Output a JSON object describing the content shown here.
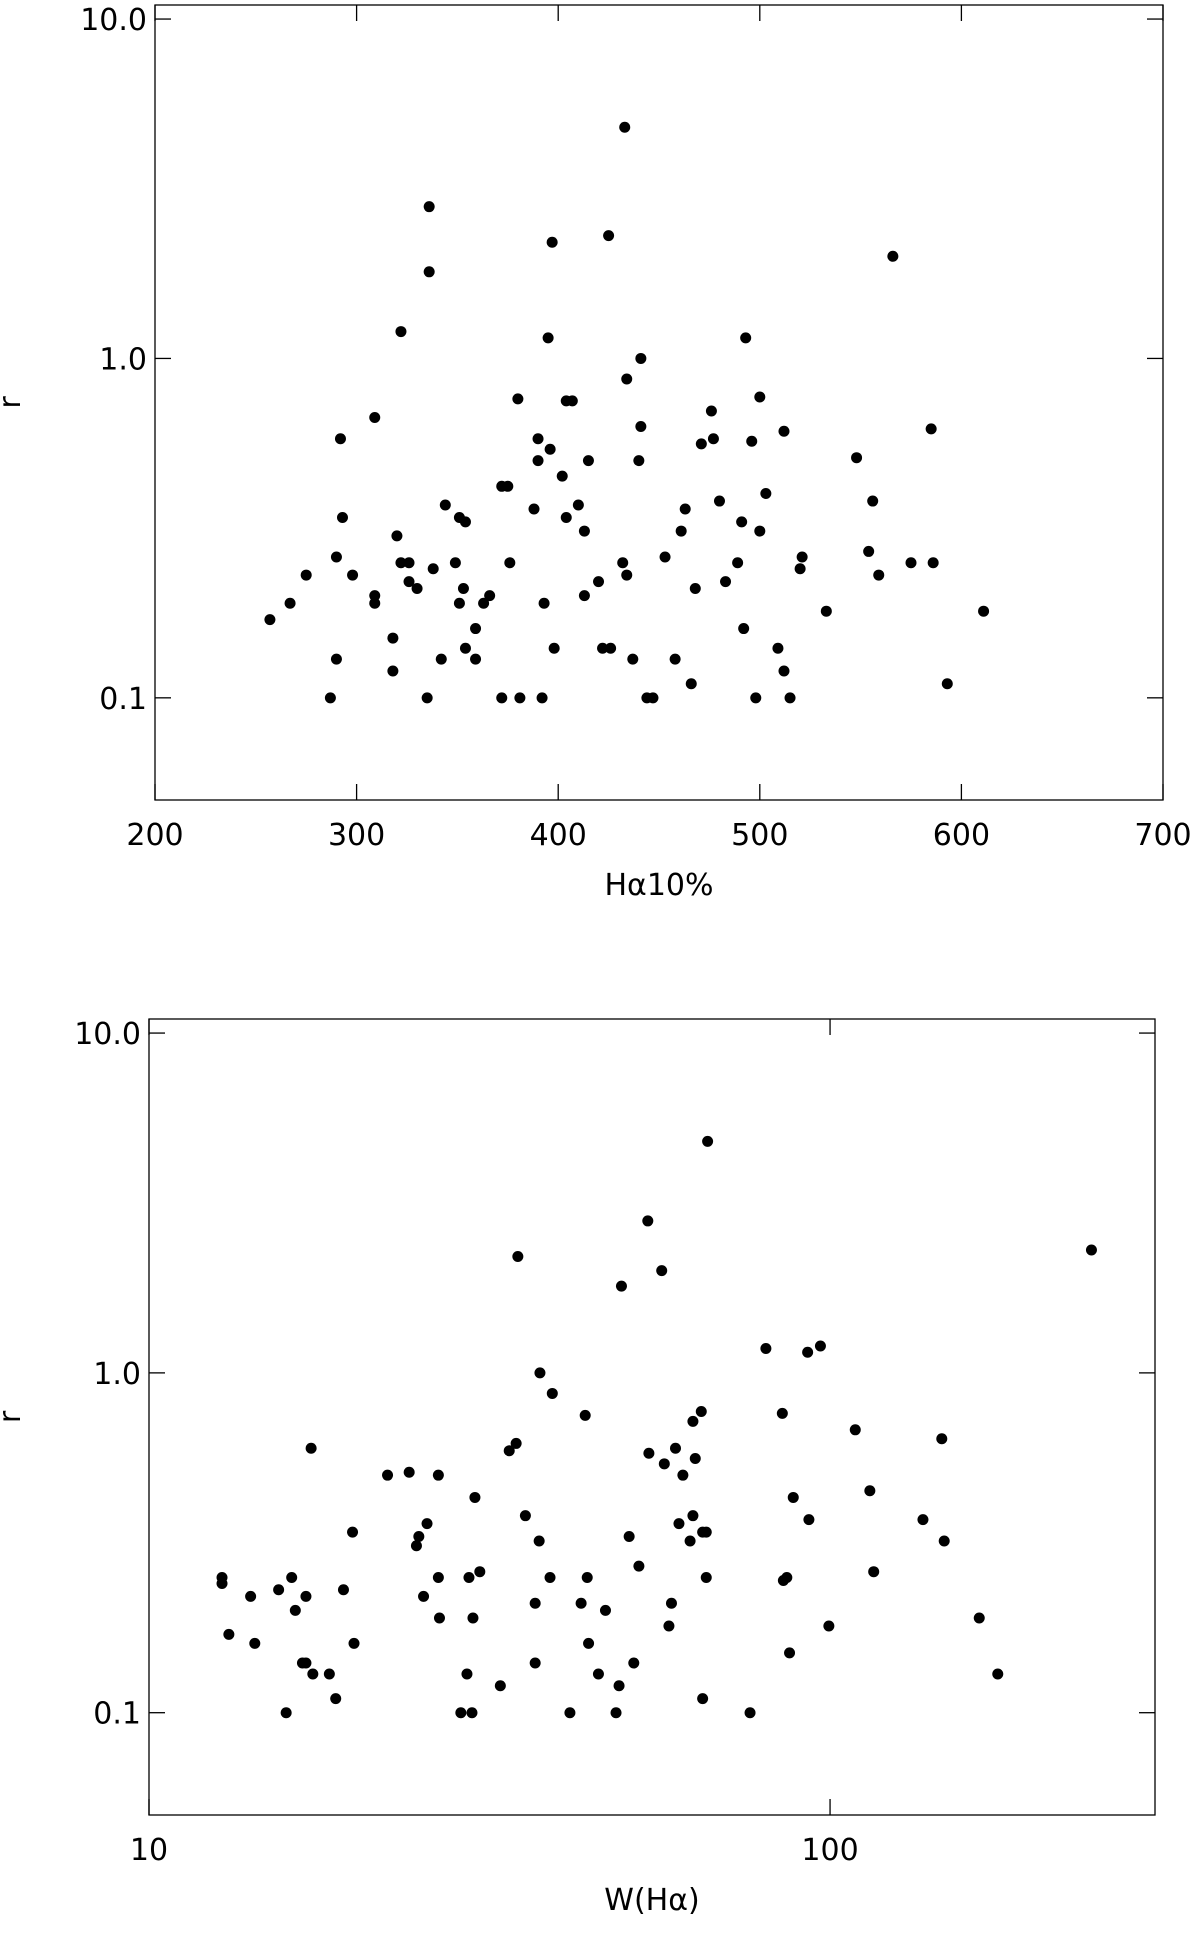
{
  "chart_data": [
    {
      "type": "scatter",
      "xlabel": "Hα10%",
      "ylabel": "r",
      "xscale": "linear",
      "yscale": "log",
      "color": "#000000",
      "xlim": [
        200,
        700
      ],
      "ylim": [
        0.05,
        11
      ],
      "xticks": [
        200,
        300,
        400,
        500,
        600,
        700
      ],
      "yticks": [
        {
          "value": 10,
          "label": "10.0"
        },
        {
          "value": 1,
          "label": "1.0"
        },
        0.1
      ],
      "x": [
        257,
        267,
        275,
        287,
        290,
        290,
        292,
        293,
        298,
        309,
        309,
        309,
        318,
        318,
        320,
        322,
        322,
        326,
        326,
        330,
        335,
        336,
        336,
        338,
        342,
        344,
        349,
        351,
        351,
        353,
        354,
        354,
        359,
        359,
        363,
        366,
        372,
        372,
        375,
        376,
        380,
        381,
        388,
        390,
        390,
        392,
        393,
        396,
        395,
        397,
        398,
        402,
        404,
        404,
        407,
        410,
        413,
        413,
        415,
        420,
        422,
        425,
        426,
        433,
        432,
        434,
        434,
        437,
        440,
        441,
        441,
        444,
        447,
        453,
        458,
        461,
        463,
        466,
        468,
        471,
        476,
        477,
        480,
        483,
        489,
        491,
        492,
        493,
        496,
        498,
        500,
        500,
        503,
        509,
        512,
        512,
        515,
        520,
        521,
        533,
        548,
        554,
        556,
        559,
        566,
        575,
        585,
        586,
        593,
        611
      ],
      "y": [
        0.17,
        0.19,
        0.23,
        0.1,
        0.13,
        0.26,
        0.58,
        0.34,
        0.23,
        0.67,
        0.2,
        0.19,
        0.15,
        0.12,
        0.3,
        1.2,
        0.25,
        0.25,
        0.22,
        0.21,
        0.1,
        1.8,
        2.8,
        0.24,
        0.13,
        0.37,
        0.25,
        0.34,
        0.19,
        0.21,
        0.14,
        0.33,
        0.16,
        0.13,
        0.19,
        0.2,
        0.42,
        0.1,
        0.42,
        0.25,
        0.76,
        0.1,
        0.36,
        0.58,
        0.5,
        0.1,
        0.19,
        0.54,
        1.15,
        2.2,
        0.14,
        0.45,
        0.34,
        0.75,
        0.75,
        0.37,
        0.31,
        0.2,
        0.5,
        0.22,
        0.14,
        2.3,
        0.14,
        4.8,
        0.25,
        0.87,
        0.23,
        0.13,
        0.5,
        0.63,
        1.0,
        0.1,
        0.1,
        0.26,
        0.13,
        0.31,
        0.36,
        0.11,
        0.21,
        0.56,
        0.7,
        0.58,
        0.38,
        0.22,
        0.25,
        0.33,
        0.16,
        1.15,
        0.57,
        0.1,
        0.31,
        0.77,
        0.4,
        0.14,
        0.12,
        0.61,
        0.1,
        0.24,
        0.26,
        0.18,
        0.51,
        0.27,
        0.38,
        0.23,
        2.0,
        0.25,
        0.62,
        0.25,
        0.11,
        0.18
      ]
    },
    {
      "type": "scatter",
      "xlabel": "W(Hα)",
      "ylabel": "r",
      "xscale": "log",
      "yscale": "log",
      "color": "#000000",
      "xlim": [
        10,
        300
      ],
      "ylim": [
        0.05,
        11
      ],
      "xticks": [
        10,
        100
      ],
      "yticks": [
        {
          "value": 10,
          "label": "10.0"
        },
        {
          "value": 1,
          "label": "1.0"
        },
        0.1
      ],
      "x": [
        12.8,
        12.8,
        13.1,
        14.1,
        14.3,
        15.5,
        15.9,
        16.2,
        16.4,
        16.8,
        17.0,
        17.0,
        17.3,
        17.4,
        18.4,
        18.8,
        19.3,
        19.9,
        20.0,
        22.4,
        24.1,
        24.7,
        24.9,
        25.3,
        25.6,
        26.6,
        26.6,
        26.7,
        28.7,
        29.3,
        29.5,
        29.8,
        29.9,
        30.1,
        30.6,
        32.8,
        33.8,
        34.6,
        34.8,
        35.7,
        36.9,
        36.9,
        37.4,
        37.5,
        38.8,
        39.1,
        41.5,
        43.1,
        43.7,
        44.0,
        44.2,
        45.7,
        46.8,
        48.5,
        49.0,
        49.4,
        50.7,
        51.5,
        52.4,
        54.0,
        54.2,
        56.6,
        57.1,
        58.0,
        58.5,
        59.3,
        60.0,
        60.8,
        62.3,
        62.9,
        62.9,
        63.4,
        64.7,
        65.0,
        65.0,
        65.8,
        65.8,
        66.1,
        76.3,
        80.5,
        85.1,
        85.4,
        86.4,
        87.2,
        88.3,
        92.7,
        93.1,
        96.8,
        99.6,
        108.9,
        114.4,
        115.9,
        136.9,
        145.9,
        147.1,
        165.6,
        176.3,
        242
      ],
      "y": [
        0.25,
        0.24,
        0.17,
        0.22,
        0.16,
        0.23,
        0.1,
        0.25,
        0.2,
        0.14,
        0.14,
        0.22,
        0.6,
        0.13,
        0.13,
        0.11,
        0.23,
        0.34,
        0.16,
        0.5,
        0.51,
        0.31,
        0.33,
        0.22,
        0.36,
        0.5,
        0.25,
        0.19,
        0.1,
        0.13,
        0.25,
        0.1,
        0.19,
        0.43,
        0.26,
        0.12,
        0.59,
        0.62,
        2.2,
        0.38,
        0.21,
        0.14,
        0.32,
        1.0,
        0.25,
        0.87,
        0.1,
        0.21,
        0.75,
        0.25,
        0.16,
        0.13,
        0.2,
        0.1,
        0.12,
        1.8,
        0.33,
        0.14,
        0.27,
        2.8,
        0.58,
        2.0,
        0.54,
        0.18,
        0.21,
        0.6,
        0.36,
        0.5,
        0.32,
        0.72,
        0.38,
        0.56,
        0.77,
        0.11,
        0.34,
        0.34,
        0.25,
        4.8,
        0.1,
        1.18,
        0.76,
        0.245,
        0.25,
        0.15,
        0.43,
        1.15,
        0.37,
        1.2,
        0.18,
        0.68,
        0.45,
        0.26,
        0.37,
        0.64,
        0.32,
        0.19,
        0.13,
        2.3
      ]
    }
  ]
}
